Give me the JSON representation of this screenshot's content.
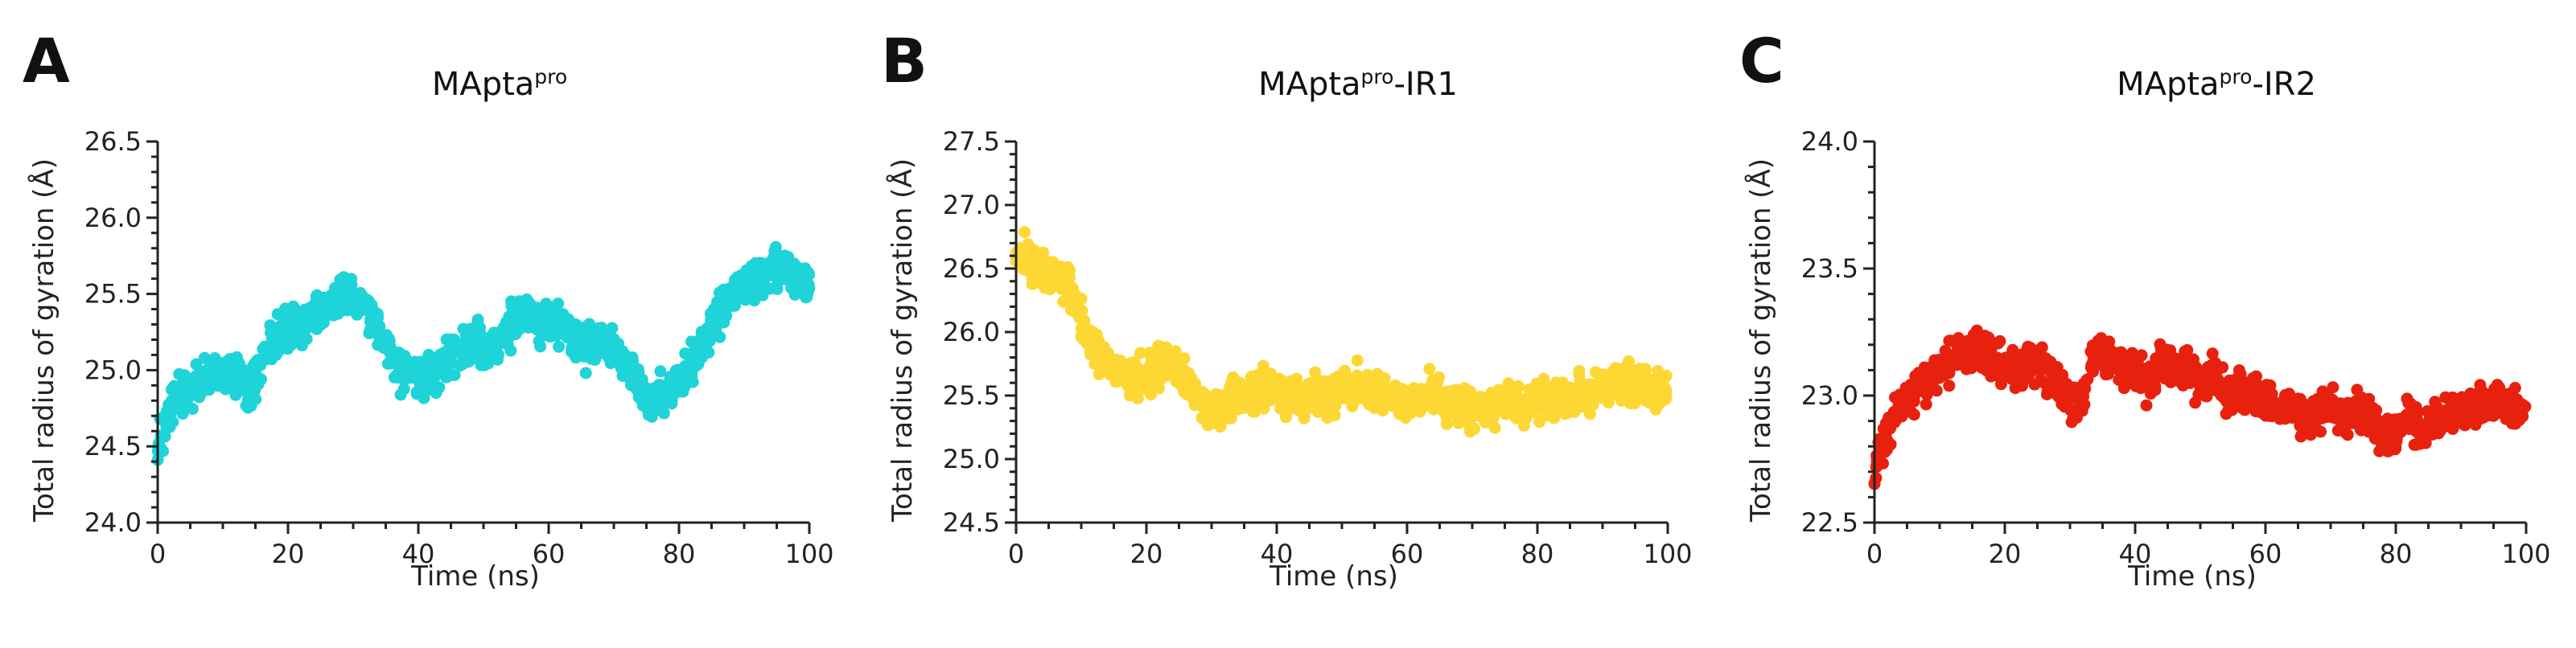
{
  "panels": [
    {
      "letter": "A",
      "title_main": "MApta",
      "title_sup": "pro",
      "title_suffix": "",
      "xlabel": "Time (ns)",
      "ylabel": "Total radius of gyration (Å)",
      "color": "#1ED4D8",
      "xlim": [
        0,
        100
      ],
      "ylim": [
        24.0,
        26.5
      ],
      "xticks": [
        0,
        20,
        40,
        60,
        80,
        100
      ],
      "xtick_labels": [
        "0",
        "20",
        "40",
        "60",
        "80",
        "100"
      ],
      "yticks": [
        24.0,
        24.5,
        25.0,
        25.5,
        26.0,
        26.5
      ],
      "ytick_labels": [
        "24.0",
        "24.5",
        "25.0",
        "25.5",
        "26.0",
        "26.5"
      ]
    },
    {
      "letter": "B",
      "title_main": "MApta",
      "title_sup": "pro",
      "title_suffix": "-IR1",
      "xlabel": "Time (ns)",
      "ylabel": "Total radius of gyration (Å)",
      "color": "#FDD835",
      "xlim": [
        0,
        100
      ],
      "ylim": [
        24.5,
        27.5
      ],
      "xticks": [
        0,
        20,
        40,
        60,
        80,
        100
      ],
      "xtick_labels": [
        "0",
        "20",
        "40",
        "60",
        "80",
        "100"
      ],
      "yticks": [
        24.5,
        25.0,
        25.5,
        26.0,
        26.5,
        27.0,
        27.5
      ],
      "ytick_labels": [
        "24.5",
        "25.0",
        "25.5",
        "26.0",
        "26.5",
        "27.0",
        "27.5"
      ]
    },
    {
      "letter": "C",
      "title_main": "MApta",
      "title_sup": "pro",
      "title_suffix": "-IR2",
      "xlabel": "Time (ns)",
      "ylabel": "Total radius of gyration (Å)",
      "color": "#E8210F",
      "xlim": [
        0,
        100
      ],
      "ylim": [
        22.5,
        24.0
      ],
      "xticks": [
        0,
        20,
        40,
        60,
        80,
        100
      ],
      "xtick_labels": [
        "0",
        "20",
        "40",
        "60",
        "80",
        "100"
      ],
      "yticks": [
        22.5,
        23.0,
        23.5,
        24.0
      ],
      "ytick_labels": [
        "22.5",
        "23.0",
        "23.5",
        "24.0"
      ]
    }
  ],
  "chart_data": [
    {
      "type": "scatter",
      "x": [
        0,
        2,
        4,
        6,
        8,
        10,
        12,
        14,
        16,
        18,
        20,
        22,
        24,
        26,
        28,
        30,
        32,
        34,
        36,
        38,
        40,
        42,
        44,
        46,
        48,
        50,
        52,
        54,
        56,
        58,
        60,
        62,
        64,
        66,
        68,
        70,
        72,
        74,
        76,
        78,
        80,
        82,
        84,
        86,
        88,
        90,
        92,
        94,
        96,
        98,
        100
      ],
      "y": [
        24.55,
        24.75,
        24.85,
        24.9,
        24.95,
        25.0,
        24.95,
        24.85,
        25.05,
        25.2,
        25.25,
        25.3,
        25.35,
        25.4,
        25.5,
        25.45,
        25.4,
        25.25,
        25.05,
        25.0,
        24.95,
        25.0,
        25.05,
        25.1,
        25.2,
        25.15,
        25.2,
        25.3,
        25.4,
        25.35,
        25.3,
        25.3,
        25.2,
        25.15,
        25.2,
        25.15,
        25.05,
        24.9,
        24.8,
        24.85,
        24.95,
        25.05,
        25.2,
        25.35,
        25.5,
        25.55,
        25.6,
        25.65,
        25.7,
        25.6,
        25.55
      ],
      "spread": 0.1,
      "xlim": [
        0,
        100
      ],
      "ylim": [
        24.0,
        26.5
      ]
    },
    {
      "type": "scatter",
      "x": [
        0,
        2,
        4,
        6,
        8,
        10,
        12,
        14,
        16,
        18,
        20,
        22,
        24,
        26,
        28,
        30,
        32,
        34,
        36,
        38,
        40,
        42,
        44,
        46,
        48,
        50,
        52,
        54,
        56,
        58,
        60,
        62,
        64,
        66,
        68,
        70,
        72,
        74,
        76,
        78,
        80,
        82,
        84,
        86,
        88,
        90,
        92,
        94,
        96,
        98,
        100
      ],
      "y": [
        26.6,
        26.55,
        26.5,
        26.45,
        26.35,
        26.1,
        25.9,
        25.75,
        25.7,
        25.65,
        25.65,
        25.75,
        25.8,
        25.6,
        25.45,
        25.4,
        25.45,
        25.5,
        25.5,
        25.55,
        25.55,
        25.5,
        25.45,
        25.5,
        25.5,
        25.55,
        25.6,
        25.55,
        25.5,
        25.5,
        25.45,
        25.5,
        25.5,
        25.45,
        25.45,
        25.4,
        25.35,
        25.4,
        25.45,
        25.4,
        25.45,
        25.45,
        25.5,
        25.5,
        25.55,
        25.55,
        25.55,
        25.6,
        25.6,
        25.55,
        25.55
      ],
      "spread": 0.12,
      "xlim": [
        0,
        100
      ],
      "ylim": [
        24.5,
        27.5
      ]
    },
    {
      "type": "scatter",
      "x": [
        0,
        2,
        4,
        6,
        8,
        10,
        12,
        14,
        16,
        18,
        20,
        22,
        24,
        26,
        28,
        30,
        32,
        34,
        36,
        38,
        40,
        42,
        44,
        46,
        48,
        50,
        52,
        54,
        56,
        58,
        60,
        62,
        64,
        66,
        68,
        70,
        72,
        74,
        76,
        78,
        80,
        82,
        84,
        86,
        88,
        90,
        92,
        94,
        96,
        98,
        100
      ],
      "y": [
        22.7,
        22.85,
        22.95,
        23.0,
        23.05,
        23.1,
        23.15,
        23.15,
        23.2,
        23.15,
        23.1,
        23.1,
        23.15,
        23.1,
        23.05,
        23.0,
        23.0,
        23.2,
        23.15,
        23.1,
        23.1,
        23.05,
        23.15,
        23.1,
        23.1,
        23.05,
        23.1,
        23.0,
        23.05,
        23.0,
        23.0,
        22.95,
        22.95,
        22.9,
        22.95,
        22.95,
        22.9,
        22.95,
        22.9,
        22.85,
        22.85,
        22.9,
        22.85,
        22.9,
        22.9,
        22.95,
        22.95,
        22.95,
        23.0,
        22.95,
        22.95
      ],
      "spread": 0.06,
      "xlim": [
        0,
        100
      ],
      "ylim": [
        22.5,
        24.0
      ]
    }
  ]
}
